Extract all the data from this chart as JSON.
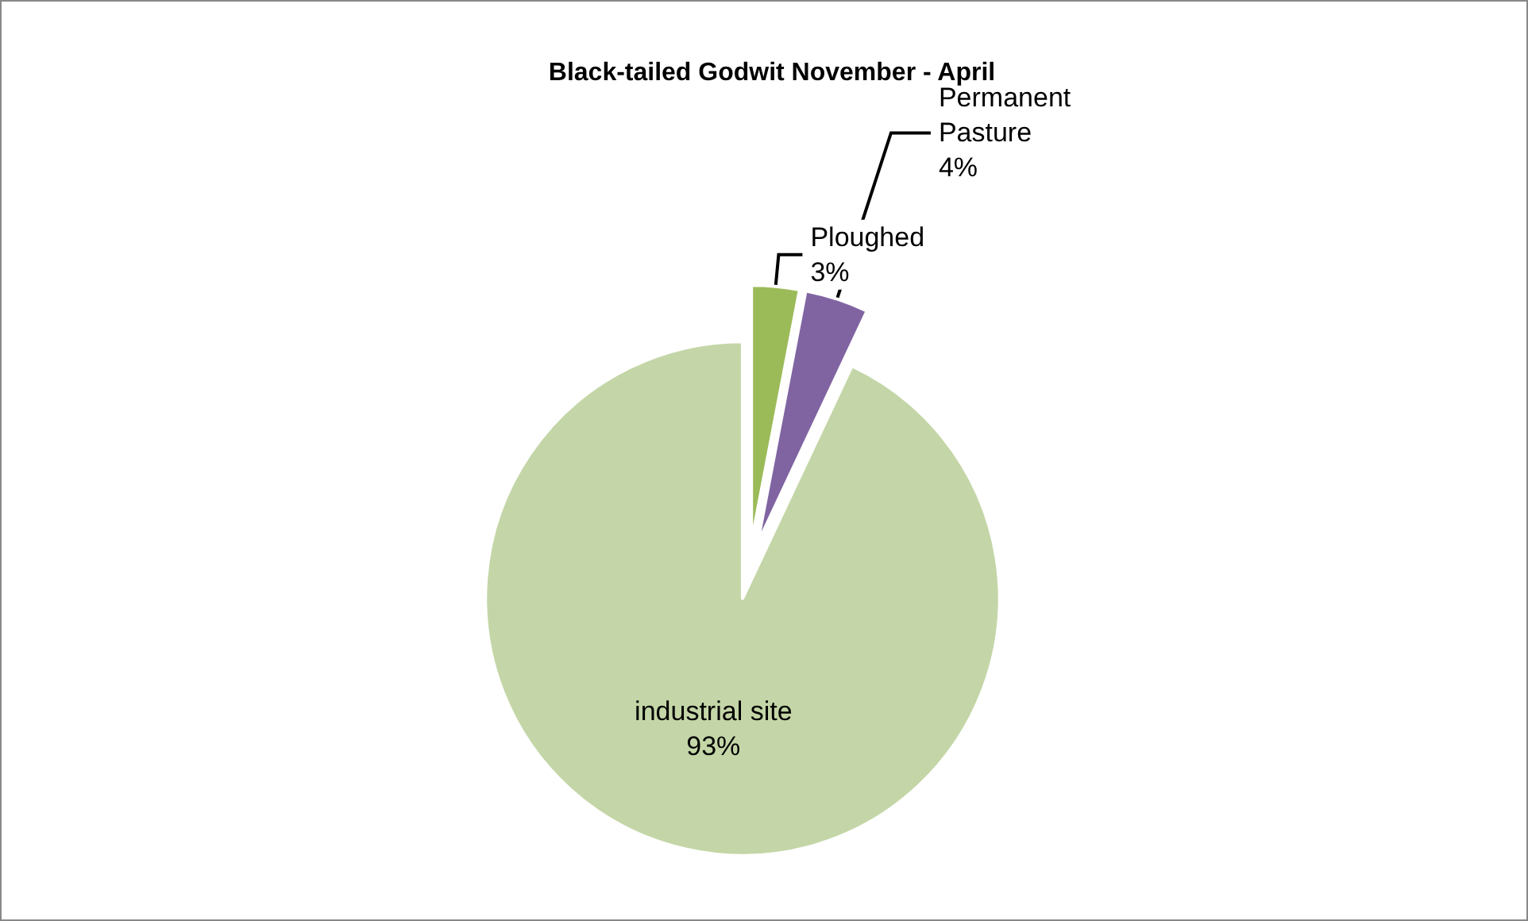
{
  "chart_data": {
    "type": "pie",
    "title": "Black-tailed Godwit November - April",
    "categories": [
      "Ploughed",
      "Permanent Pasture",
      "industrial site"
    ],
    "values": [
      3,
      4,
      93
    ],
    "colors": [
      "#9bbb59",
      "#8064a2",
      "#c4d6a7"
    ],
    "value_labels": [
      "3%",
      "4%",
      "93%"
    ],
    "data_labels": true,
    "legend": false
  }
}
